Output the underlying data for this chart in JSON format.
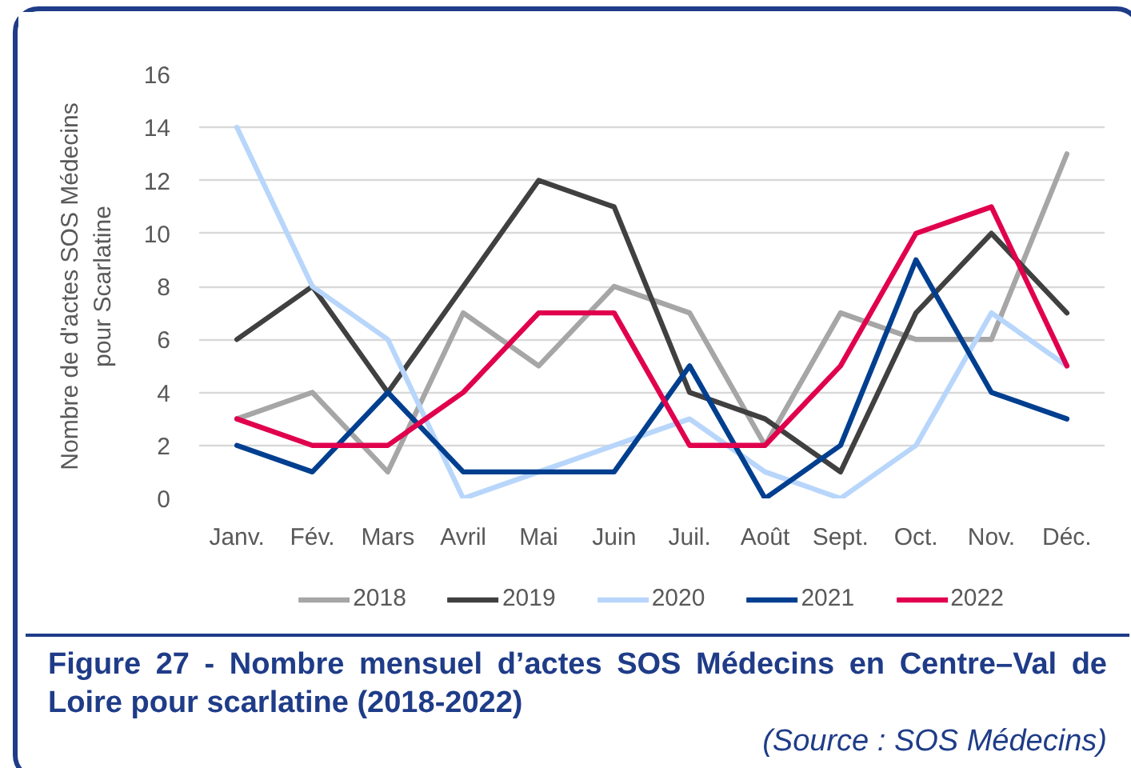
{
  "chart_data": {
    "type": "line",
    "title": "Figure 27 - Nombre mensuel d’actes SOS Médecins en Centre–Val de Loire pour scarlatine (2018-2022)",
    "ylabel": "Nombre de d'actes SOS Médecins pour Scarlatine",
    "annotations": [
      "(Source : SOS Médecins)"
    ],
    "categories": [
      "Janv.",
      "Fév.",
      "Mars",
      "Avril",
      "Mai",
      "Juin",
      "Juil.",
      "Août",
      "Sept.",
      "Oct.",
      "Nov.",
      "Déc."
    ],
    "ylim": [
      0,
      16
    ],
    "yticks": [
      0,
      2,
      4,
      6,
      8,
      10,
      12,
      14,
      16
    ],
    "grid": "y",
    "legend": "bottom",
    "series": [
      {
        "name": "2018",
        "color": "#a6a6a6",
        "values": [
          3,
          4,
          1,
          7,
          5,
          8,
          7,
          2,
          7,
          6,
          6,
          13
        ]
      },
      {
        "name": "2019",
        "color": "#404040",
        "values": [
          6,
          8,
          4,
          8,
          12,
          11,
          4,
          3,
          1,
          7,
          10,
          7
        ]
      },
      {
        "name": "2020",
        "color": "#b8d6fb",
        "values": [
          14,
          8,
          6,
          0,
          1,
          2,
          3,
          1,
          0,
          2,
          7,
          5
        ]
      },
      {
        "name": "2021",
        "color": "#003f8f",
        "values": [
          2,
          1,
          4,
          1,
          1,
          1,
          5,
          0,
          2,
          9,
          4,
          3
        ]
      },
      {
        "name": "2022",
        "color": "#e0004d",
        "values": [
          3,
          2,
          2,
          4,
          7,
          7,
          2,
          2,
          5,
          10,
          11,
          5
        ]
      }
    ]
  }
}
